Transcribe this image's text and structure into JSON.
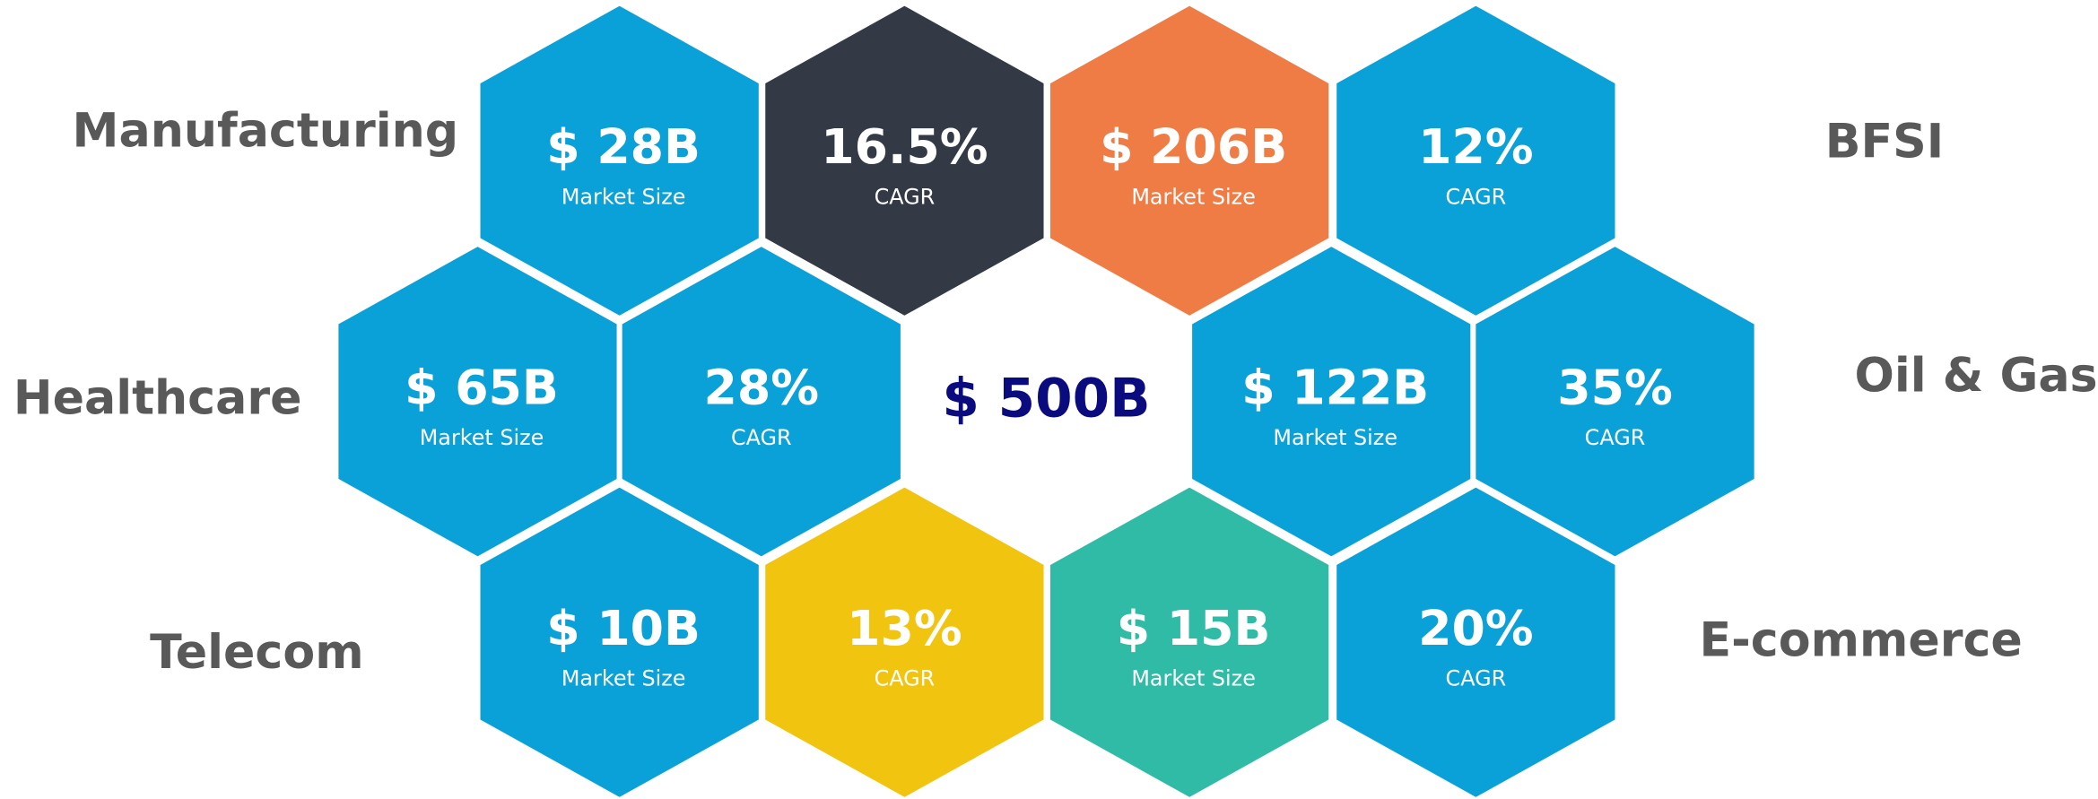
{
  "center": "$ 500B",
  "size_caption": "Market Size",
  "cagr_caption": "CAGR",
  "sectors": [
    {
      "name": "Manufacturing",
      "market_size": "$ 28B",
      "cagr": "16.5%"
    },
    {
      "name": "BFSI",
      "market_size": "$ 206B",
      "cagr": "12%"
    },
    {
      "name": "Healthcare",
      "market_size": "$ 65B",
      "cagr": "28%"
    },
    {
      "name": "Oil & Gas",
      "market_size": "$ 122B",
      "cagr": "35%"
    },
    {
      "name": "Telecom",
      "market_size": "$ 10B",
      "cagr": "13%"
    },
    {
      "name": "E-commerce",
      "market_size": "$ 15B",
      "cagr": "20%"
    }
  ]
}
